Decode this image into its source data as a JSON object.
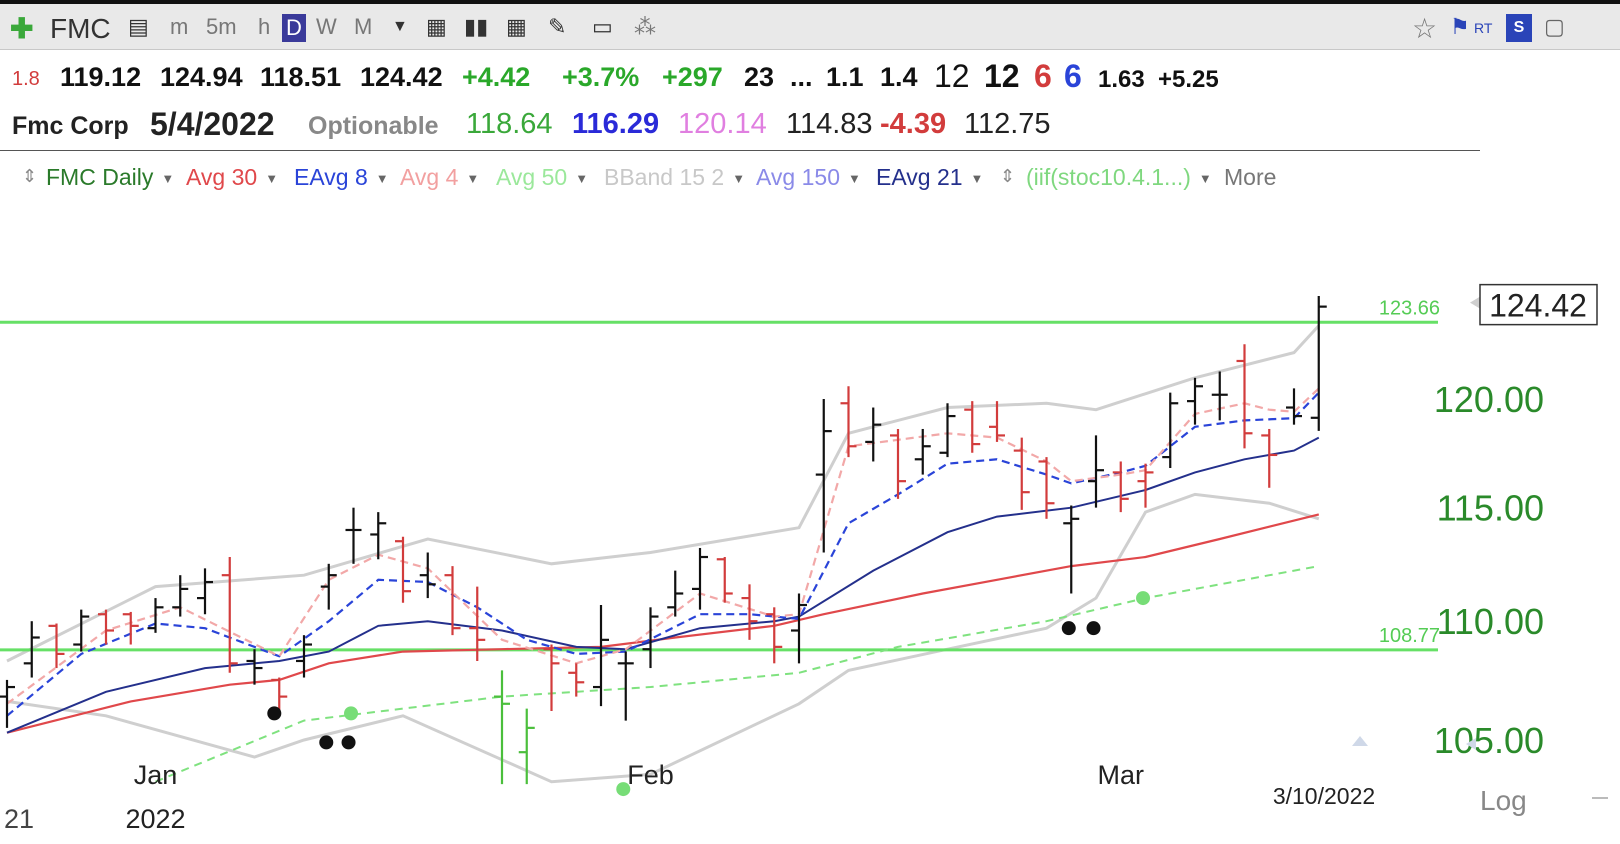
{
  "toolbar": {
    "symbol": "FMC",
    "intervals": [
      "m",
      "5m",
      "h",
      "D",
      "W",
      "M"
    ],
    "active_interval": "D",
    "rt_label": "RT"
  },
  "quote": {
    "change_small": "1.8",
    "open": "119.12",
    "high": "124.94",
    "low": "118.51",
    "close": "124.42",
    "change": "+4.42",
    "change_pct": "+3.7%",
    "volume_change": "+297",
    "v1": "23",
    "ellipsis": "...",
    "v2": "1.1",
    "v3": "1.4",
    "v4": "12",
    "v5": "12",
    "v6": "6",
    "v7": "6",
    "v8": "1.63",
    "v9": "+5.25"
  },
  "quote2": {
    "name": "Fmc Corp",
    "date": "5/4/2022",
    "optionable": "Optionable",
    "n1": "118.64",
    "n2": "116.29",
    "n3": "120.14",
    "n4": "114.83",
    "n5": "-4.39",
    "n6": "112.75"
  },
  "studies": {
    "s0": "FMC Daily",
    "s1": "Avg 30",
    "s2": "EAvg 8",
    "s3": "Avg 4",
    "s4": "Avg 50",
    "s5": "BBand 15 2",
    "s6": "Avg 150",
    "s7": "EAvg 21",
    "s8": "(iif(stoc10.4.1...)",
    "more": "More"
  },
  "colors": {
    "up_bar": "#111111",
    "down_bar": "#d23c3c",
    "green_bar": "#4bbf3c",
    "avg30": "#e0484b",
    "eavg8": "#2a44d8",
    "avg4": "#f2a8a8",
    "avg50": "#7fe27f",
    "bband": "#cfcfcf",
    "eavg21": "#24308c",
    "hline": "#66e066",
    "price_axis": "#2a8a2a"
  },
  "chart_data": {
    "type": "ohlc",
    "scale": "log",
    "y_ticks": [
      "120.00",
      "115.00",
      "110.00",
      "105.00"
    ],
    "y_tick_values": [
      120,
      115,
      110,
      105
    ],
    "x_labels": [
      "Jan",
      "Feb",
      "Mar"
    ],
    "x_label_values": [
      6,
      26,
      45
    ],
    "year_label": "2022",
    "left_stub": "21",
    "date_label": "3/10/2022",
    "log_label": "Log",
    "last_price_label": "124.42",
    "last_price_value": 124.42,
    "hlines": [
      {
        "value": 108.77,
        "label": "108.77"
      },
      {
        "value": 123.66,
        "label": "123.66"
      }
    ],
    "bars": [
      {
        "x": 0,
        "o": 106.8,
        "h": 107.5,
        "l": 105.5,
        "c": 107.2,
        "color": "black"
      },
      {
        "x": 1,
        "o": 108.2,
        "h": 110.0,
        "l": 107.6,
        "c": 109.3,
        "color": "black"
      },
      {
        "x": 2,
        "o": 109.8,
        "h": 109.9,
        "l": 108.0,
        "c": 108.6,
        "color": "red"
      },
      {
        "x": 3,
        "o": 109.0,
        "h": 110.5,
        "l": 108.7,
        "c": 110.2,
        "color": "black"
      },
      {
        "x": 4,
        "o": 110.3,
        "h": 110.5,
        "l": 109.0,
        "c": 109.6,
        "color": "red"
      },
      {
        "x": 5,
        "o": 110.3,
        "h": 110.4,
        "l": 109.0,
        "c": 109.8,
        "color": "red"
      },
      {
        "x": 6,
        "o": 109.7,
        "h": 111.0,
        "l": 109.5,
        "c": 110.6,
        "color": "black"
      },
      {
        "x": 7,
        "o": 110.6,
        "h": 112.0,
        "l": 110.2,
        "c": 111.4,
        "color": "black"
      },
      {
        "x": 8,
        "o": 111.0,
        "h": 112.3,
        "l": 110.3,
        "c": 111.7,
        "color": "black"
      },
      {
        "x": 9,
        "o": 112.0,
        "h": 112.8,
        "l": 107.8,
        "c": 108.2,
        "color": "red"
      },
      {
        "x": 10,
        "o": 108.3,
        "h": 108.8,
        "l": 107.3,
        "c": 108.0,
        "color": "black"
      },
      {
        "x": 11,
        "o": 107.5,
        "h": 107.6,
        "l": 106.1,
        "c": 106.8,
        "color": "red"
      },
      {
        "x": 12,
        "o": 108.3,
        "h": 109.4,
        "l": 107.6,
        "c": 109.0,
        "color": "black"
      },
      {
        "x": 13,
        "o": 111.5,
        "h": 112.5,
        "l": 110.5,
        "c": 112.0,
        "color": "black"
      },
      {
        "x": 14,
        "o": 114.0,
        "h": 115.0,
        "l": 112.5,
        "c": 114.0,
        "color": "black"
      },
      {
        "x": 15,
        "o": 113.8,
        "h": 114.8,
        "l": 112.7,
        "c": 114.3,
        "color": "black"
      },
      {
        "x": 16,
        "o": 113.5,
        "h": 113.7,
        "l": 110.8,
        "c": 111.3,
        "color": "red"
      },
      {
        "x": 17,
        "o": 112.0,
        "h": 113.0,
        "l": 111.0,
        "c": 111.6,
        "color": "black"
      },
      {
        "x": 18,
        "o": 112.0,
        "h": 112.4,
        "l": 109.4,
        "c": 109.7,
        "color": "red"
      },
      {
        "x": 19,
        "o": 109.7,
        "h": 111.5,
        "l": 108.3,
        "c": 109.2,
        "color": "red"
      },
      {
        "x": 20,
        "o": 106.8,
        "h": 107.9,
        "l": 103.2,
        "c": 106.5,
        "color": "green"
      },
      {
        "x": 21,
        "o": 104.5,
        "h": 106.3,
        "l": 103.2,
        "c": 105.5,
        "color": "green"
      },
      {
        "x": 22,
        "o": 108.8,
        "h": 109.0,
        "l": 106.2,
        "c": 108.2,
        "color": "red"
      },
      {
        "x": 23,
        "o": 107.8,
        "h": 108.2,
        "l": 106.8,
        "c": 107.4,
        "color": "red"
      },
      {
        "x": 24,
        "o": 107.2,
        "h": 110.7,
        "l": 106.4,
        "c": 109.2,
        "color": "black"
      },
      {
        "x": 25,
        "o": 108.2,
        "h": 108.7,
        "l": 105.8,
        "c": 108.2,
        "color": "black"
      },
      {
        "x": 26,
        "o": 108.8,
        "h": 110.6,
        "l": 108.0,
        "c": 110.2,
        "color": "black"
      },
      {
        "x": 27,
        "o": 110.6,
        "h": 112.2,
        "l": 110.2,
        "c": 111.2,
        "color": "black"
      },
      {
        "x": 28,
        "o": 111.4,
        "h": 113.2,
        "l": 110.5,
        "c": 112.8,
        "color": "black"
      },
      {
        "x": 29,
        "o": 112.7,
        "h": 112.8,
        "l": 110.8,
        "c": 111.2,
        "color": "red"
      },
      {
        "x": 30,
        "o": 111.0,
        "h": 111.6,
        "l": 109.2,
        "c": 110.0,
        "color": "red"
      },
      {
        "x": 31,
        "o": 110.3,
        "h": 110.6,
        "l": 108.2,
        "c": 108.9,
        "color": "red"
      },
      {
        "x": 32,
        "o": 109.6,
        "h": 111.2,
        "l": 108.2,
        "c": 110.7,
        "color": "black"
      },
      {
        "x": 33,
        "o": 116.5,
        "h": 120.0,
        "l": 113.0,
        "c": 118.5,
        "color": "black"
      },
      {
        "x": 34,
        "o": 119.8,
        "h": 120.6,
        "l": 117.3,
        "c": 117.8,
        "color": "red"
      },
      {
        "x": 35,
        "o": 118.0,
        "h": 119.6,
        "l": 117.1,
        "c": 118.8,
        "color": "black"
      },
      {
        "x": 36,
        "o": 118.3,
        "h": 118.6,
        "l": 115.4,
        "c": 116.2,
        "color": "red"
      },
      {
        "x": 37,
        "o": 117.2,
        "h": 118.6,
        "l": 116.5,
        "c": 117.8,
        "color": "black"
      },
      {
        "x": 38,
        "o": 117.5,
        "h": 119.8,
        "l": 117.3,
        "c": 119.2,
        "color": "black"
      },
      {
        "x": 39,
        "o": 119.5,
        "h": 119.9,
        "l": 117.5,
        "c": 117.9,
        "color": "red"
      },
      {
        "x": 40,
        "o": 118.7,
        "h": 119.9,
        "l": 118.0,
        "c": 118.3,
        "color": "red"
      },
      {
        "x": 41,
        "o": 117.6,
        "h": 118.2,
        "l": 114.9,
        "c": 115.7,
        "color": "red"
      },
      {
        "x": 42,
        "o": 117.1,
        "h": 117.3,
        "l": 114.5,
        "c": 115.2,
        "color": "red"
      },
      {
        "x": 43,
        "o": 114.3,
        "h": 115.1,
        "l": 111.2,
        "c": 114.5,
        "color": "black"
      },
      {
        "x": 44,
        "o": 116.2,
        "h": 118.3,
        "l": 115.0,
        "c": 116.7,
        "color": "black"
      },
      {
        "x": 45,
        "o": 116.6,
        "h": 117.1,
        "l": 114.8,
        "c": 115.4,
        "color": "red"
      },
      {
        "x": 46,
        "o": 116.2,
        "h": 117.0,
        "l": 115.0,
        "c": 116.6,
        "color": "red"
      },
      {
        "x": 47,
        "o": 117.3,
        "h": 120.3,
        "l": 116.8,
        "c": 119.8,
        "color": "black"
      },
      {
        "x": 48,
        "o": 119.9,
        "h": 121.0,
        "l": 118.8,
        "c": 120.6,
        "color": "black"
      },
      {
        "x": 49,
        "o": 120.2,
        "h": 121.3,
        "l": 119.0,
        "c": 120.2,
        "color": "black"
      },
      {
        "x": 50,
        "o": 121.8,
        "h": 122.6,
        "l": 117.7,
        "c": 118.4,
        "color": "red"
      },
      {
        "x": 51,
        "o": 118.3,
        "h": 118.6,
        "l": 115.9,
        "c": 117.4,
        "color": "red"
      },
      {
        "x": 52,
        "o": 119.6,
        "h": 120.5,
        "l": 118.8,
        "c": 119.2,
        "color": "black"
      },
      {
        "x": 53,
        "o": 119.12,
        "h": 124.94,
        "l": 118.51,
        "c": 124.42,
        "color": "black"
      }
    ],
    "avg4": [
      [
        0,
        106.5
      ],
      [
        4,
        109.6
      ],
      [
        7,
        110.6
      ],
      [
        11,
        108.5
      ],
      [
        13,
        111.8
      ],
      [
        15,
        112.9
      ],
      [
        17,
        112.3
      ],
      [
        20,
        109.2
      ],
      [
        23,
        108.2
      ],
      [
        25,
        108.8
      ],
      [
        28,
        111.2
      ],
      [
        31,
        110.2
      ],
      [
        32,
        110.3
      ],
      [
        34,
        117.8
      ],
      [
        36,
        118.1
      ],
      [
        38,
        118.4
      ],
      [
        40,
        118.2
      ],
      [
        42,
        117.1
      ],
      [
        43,
        116.2
      ],
      [
        45,
        116.5
      ],
      [
        46,
        116.7
      ],
      [
        48,
        119.3
      ],
      [
        50,
        119.8
      ],
      [
        51,
        119.5
      ],
      [
        52,
        119.4
      ],
      [
        53,
        120.5
      ]
    ],
    "eavg8": [
      [
        0,
        106.0
      ],
      [
        3,
        108.6
      ],
      [
        6,
        109.9
      ],
      [
        8,
        109.7
      ],
      [
        11,
        108.5
      ],
      [
        13,
        110.0
      ],
      [
        15,
        111.8
      ],
      [
        17,
        111.7
      ],
      [
        19,
        110.6
      ],
      [
        21,
        109.2
      ],
      [
        23,
        108.6
      ],
      [
        25,
        108.7
      ],
      [
        28,
        110.3
      ],
      [
        30,
        110.3
      ],
      [
        32,
        110.1
      ],
      [
        34,
        114.3
      ],
      [
        36,
        115.6
      ],
      [
        38,
        117.0
      ],
      [
        40,
        117.2
      ],
      [
        42,
        116.5
      ],
      [
        43,
        116.1
      ],
      [
        45,
        116.6
      ],
      [
        46,
        116.9
      ],
      [
        48,
        118.7
      ],
      [
        50,
        119.0
      ],
      [
        52,
        119.1
      ],
      [
        53,
        120.3
      ]
    ],
    "eavg21": [
      [
        0,
        105.3
      ],
      [
        4,
        107.0
      ],
      [
        8,
        108.0
      ],
      [
        11,
        108.3
      ],
      [
        13,
        108.7
      ],
      [
        15,
        109.8
      ],
      [
        17,
        110.0
      ],
      [
        20,
        109.6
      ],
      [
        23,
        108.9
      ],
      [
        25,
        108.8
      ],
      [
        28,
        109.7
      ],
      [
        31,
        110.0
      ],
      [
        32,
        110.2
      ],
      [
        35,
        112.2
      ],
      [
        38,
        113.9
      ],
      [
        40,
        114.6
      ],
      [
        43,
        115.0
      ],
      [
        46,
        115.8
      ],
      [
        48,
        116.6
      ],
      [
        50,
        117.2
      ],
      [
        52,
        117.6
      ],
      [
        53,
        118.2
      ]
    ],
    "avg30": [
      [
        0,
        105.3
      ],
      [
        5,
        106.6
      ],
      [
        9,
        107.3
      ],
      [
        11,
        107.5
      ],
      [
        13,
        108.2
      ],
      [
        16,
        108.7
      ],
      [
        20,
        108.8
      ],
      [
        24,
        108.9
      ],
      [
        27,
        109.3
      ],
      [
        31,
        109.8
      ],
      [
        33,
        110.3
      ],
      [
        37,
        111.2
      ],
      [
        40,
        111.8
      ],
      [
        43,
        112.4
      ],
      [
        46,
        112.8
      ],
      [
        49,
        113.6
      ],
      [
        53,
        114.7
      ]
    ],
    "avg50": [
      [
        6,
        103.3
      ],
      [
        12,
        105.8
      ],
      [
        20,
        106.8
      ],
      [
        26,
        107.2
      ],
      [
        32,
        107.8
      ],
      [
        36,
        108.9
      ],
      [
        42,
        110.0
      ],
      [
        46,
        111.0
      ],
      [
        50,
        111.8
      ],
      [
        53,
        112.4
      ]
    ],
    "bband_upper": [
      [
        0,
        108.3
      ],
      [
        6,
        111.5
      ],
      [
        12,
        112.0
      ],
      [
        17,
        113.6
      ],
      [
        22,
        112.5
      ],
      [
        26,
        113.0
      ],
      [
        32,
        114.1
      ],
      [
        34,
        118.4
      ],
      [
        38,
        119.6
      ],
      [
        42,
        119.8
      ],
      [
        44,
        119.5
      ],
      [
        48,
        121.0
      ],
      [
        52,
        122.2
      ],
      [
        53,
        123.5
      ]
    ],
    "bband_lower": [
      [
        0,
        106.6
      ],
      [
        4,
        106.0
      ],
      [
        10,
        104.3
      ],
      [
        12,
        105.0
      ],
      [
        16,
        106.0
      ],
      [
        22,
        103.3
      ],
      [
        26,
        103.6
      ],
      [
        32,
        106.5
      ],
      [
        34,
        107.9
      ],
      [
        38,
        108.8
      ],
      [
        42,
        109.7
      ],
      [
        44,
        111.0
      ],
      [
        46,
        114.8
      ],
      [
        48,
        115.6
      ],
      [
        51,
        115.2
      ],
      [
        53,
        114.5
      ]
    ],
    "dots": [
      {
        "x": 10.8,
        "v": 106.1,
        "color": "black"
      },
      {
        "x": 12.9,
        "v": 104.9,
        "color": "black"
      },
      {
        "x": 13.8,
        "v": 104.9,
        "color": "black"
      },
      {
        "x": 13.9,
        "v": 106.1,
        "color": "green"
      },
      {
        "x": 24.9,
        "v": 103.0,
        "color": "green"
      },
      {
        "x": 42.9,
        "v": 109.7,
        "color": "black"
      },
      {
        "x": 43.9,
        "v": 109.7,
        "color": "black"
      },
      {
        "x": 45.9,
        "v": 111.0,
        "color": "green"
      }
    ]
  }
}
